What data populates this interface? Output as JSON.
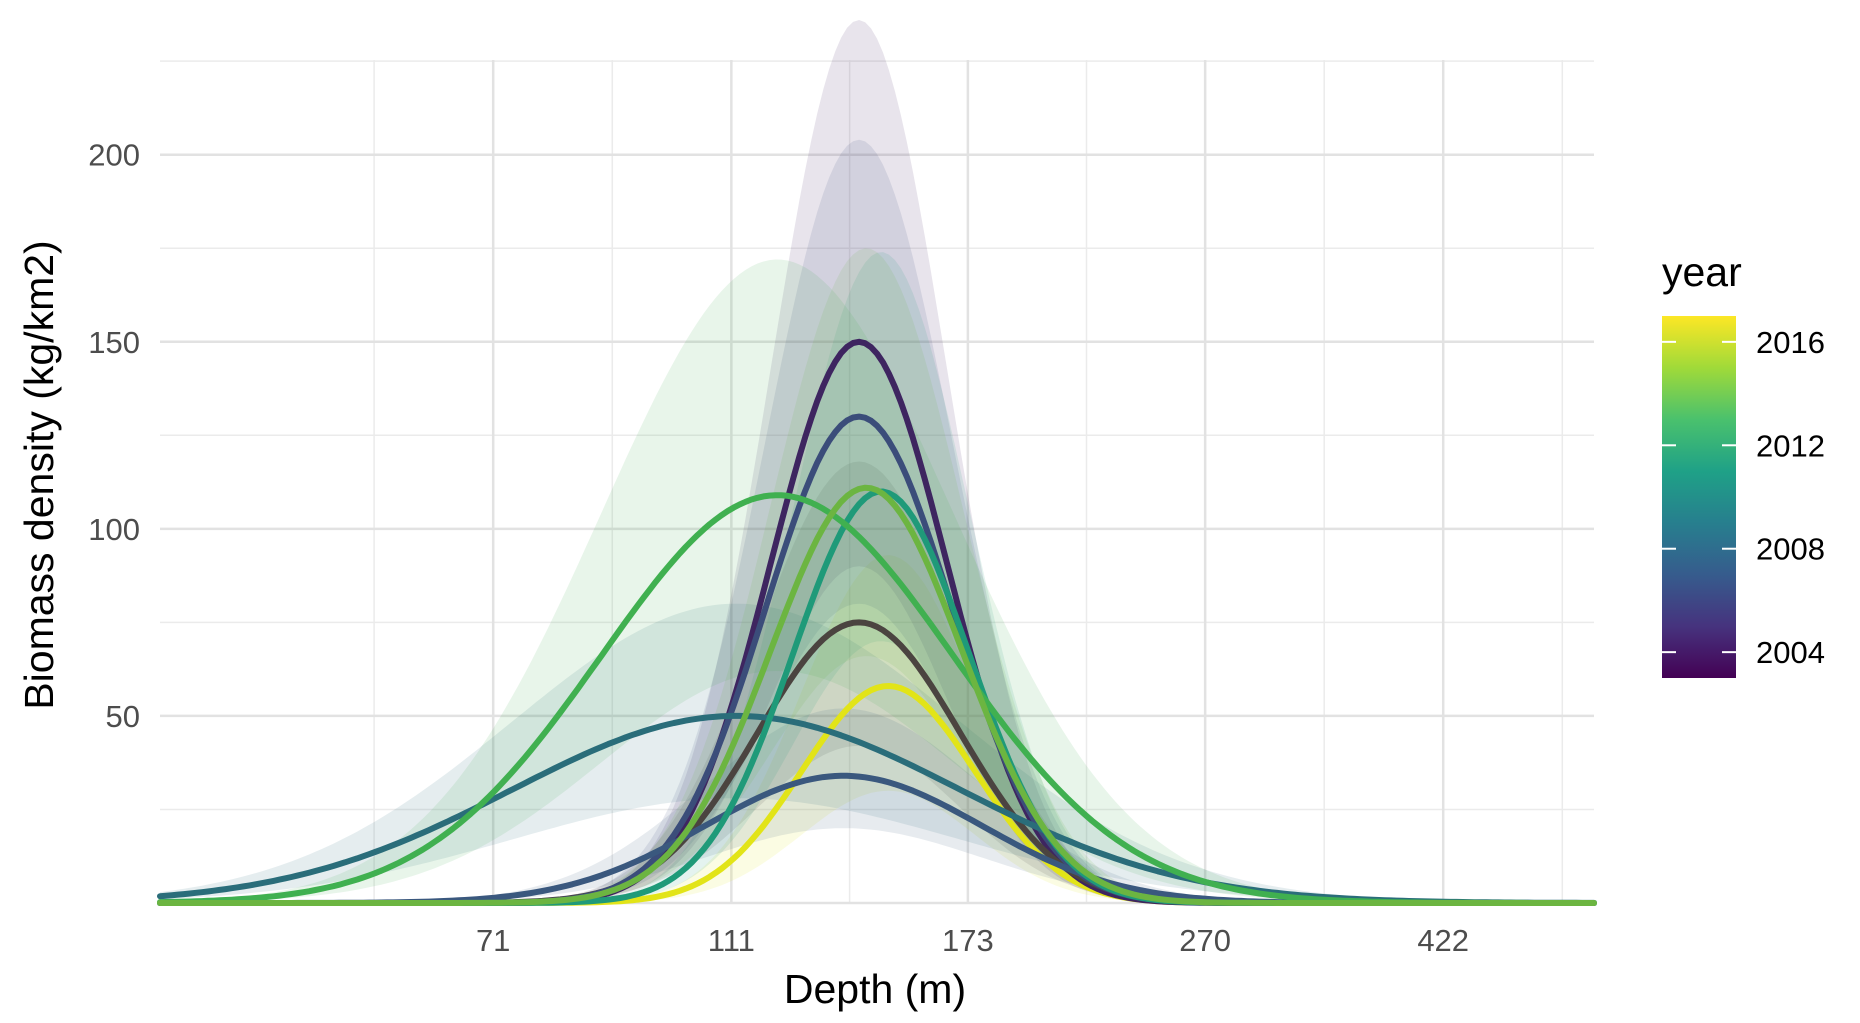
{
  "chart_data": {
    "type": "line",
    "title": "",
    "xlabel": "Depth (m)",
    "ylabel": "Biomass density (kg/km2)",
    "x_scale": "log",
    "x_range_m": [
      38,
      560
    ],
    "ylim": [
      0,
      236
    ],
    "x_ticks": [
      71,
      111,
      173,
      270,
      422
    ],
    "y_ticks": [
      50,
      100,
      150,
      200
    ],
    "grid": true,
    "legend": {
      "title": "year",
      "placement": "right",
      "type": "colorbar",
      "range": [
        2003,
        2017
      ],
      "ticks": [
        2004,
        2008,
        2012,
        2016
      ],
      "palette": [
        "#440154",
        "#46337e",
        "#365c8d",
        "#277f8e",
        "#1fa187",
        "#4ac16d",
        "#a0da39",
        "#fde725"
      ]
    },
    "series": [
      {
        "year": 2016,
        "peak_depth": 149,
        "peak_value": 58,
        "sd_log": 0.163,
        "band_upper": 93,
        "band_lower": 30,
        "color": "#e2e418"
      },
      {
        "year": 2004,
        "peak_depth": 141,
        "peak_value": 150,
        "sd_log": 0.165,
        "band_upper": 236,
        "band_lower": 90,
        "color": "#3e2560"
      },
      {
        "year": 2007,
        "peak_depth": 141,
        "peak_value": 75,
        "sd_log": 0.19,
        "band_upper": 118,
        "band_lower": 42,
        "color": "#4b4440"
      },
      {
        "year": 2008,
        "peak_depth": 141,
        "peak_value": 130,
        "sd_log": 0.175,
        "band_upper": 204,
        "band_lower": 80,
        "color": "#3b4d7a"
      },
      {
        "year": 2006,
        "peak_depth": 137,
        "peak_value": 34,
        "sd_log": 0.26,
        "band_upper": 52,
        "band_lower": 20,
        "color": "#3a587e"
      },
      {
        "year": 2009,
        "peak_depth": 112,
        "peak_value": 50,
        "sd_log": 0.42,
        "band_upper": 80,
        "band_lower": 28,
        "color": "#2a6d7a"
      },
      {
        "year": 2012,
        "peak_depth": 147,
        "peak_value": 110,
        "sd_log": 0.165,
        "band_upper": 174,
        "band_lower": 70,
        "color": "#1f9a79"
      },
      {
        "year": 2014,
        "peak_depth": 121,
        "peak_value": 109,
        "sd_log": 0.33,
        "band_upper": 172,
        "band_lower": 62,
        "color": "#40b050"
      },
      {
        "year": 2015,
        "peak_depth": 143,
        "peak_value": 111,
        "sd_log": 0.18,
        "band_upper": 175,
        "band_lower": 66,
        "color": "#6cb541"
      }
    ]
  }
}
